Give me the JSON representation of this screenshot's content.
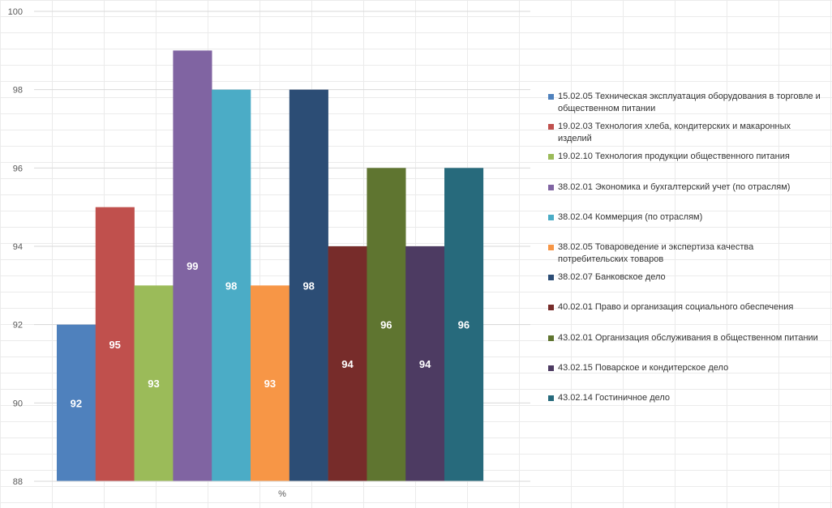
{
  "chart_data": {
    "type": "bar",
    "categories": [
      "%"
    ],
    "series": [
      {
        "name": "15.02.05 Техническая эксплуатация оборудования в торговле и общественном питании",
        "values": [
          92
        ],
        "color": "#4f81bd"
      },
      {
        "name": "19.02.03 Технология хлеба, кондитерских и макаронных изделий",
        "values": [
          95
        ],
        "color": "#c0504d"
      },
      {
        "name": "19.02.10 Технология продукции общественного питания",
        "values": [
          93
        ],
        "color": "#9bbb59"
      },
      {
        "name": "38.02.01 Экономика и бухгалтерский учет (по отраслям)",
        "values": [
          99
        ],
        "color": "#8064a2"
      },
      {
        "name": "38.02.04 Коммерция (по отраслям)",
        "values": [
          98
        ],
        "color": "#4bacc6"
      },
      {
        "name": "38.02.05 Товароведение и экспертиза качества потребительских товаров",
        "values": [
          93
        ],
        "color": "#f79646"
      },
      {
        "name": "38.02.07 Банковское дело",
        "values": [
          98
        ],
        "color": "#2c4d75"
      },
      {
        "name": "40.02.01 Право и организация социального обеспечения",
        "values": [
          94
        ],
        "color": "#772c2a"
      },
      {
        "name": "43.02.01 Организация обслуживания в общественном питании",
        "values": [
          96
        ],
        "color": "#5f7530"
      },
      {
        "name": "43.02.15 Поварское и кондитерское дело",
        "values": [
          94
        ],
        "color": "#4d3b62"
      },
      {
        "name": "43.02.14 Гостиничное дело",
        "values": [
          96
        ],
        "color": "#276a7c"
      }
    ],
    "y_ticks": [
      "88",
      "90",
      "92",
      "94",
      "96",
      "98",
      "100"
    ],
    "ylim": [
      88,
      100
    ],
    "grid": true,
    "legend_position": "right",
    "data_label_color": "#ffffff"
  }
}
